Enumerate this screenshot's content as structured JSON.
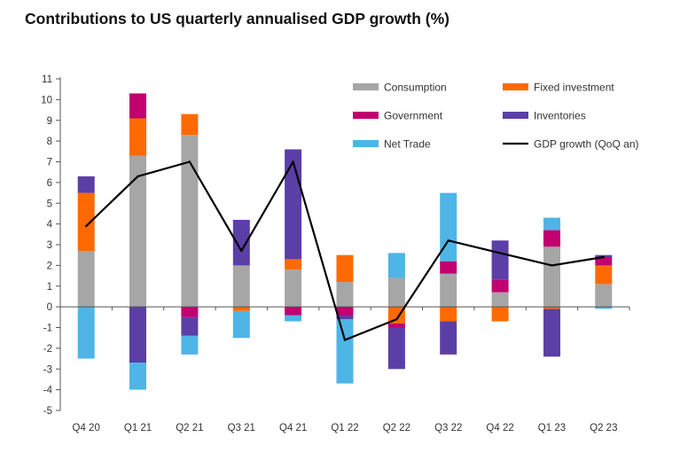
{
  "chart_data": {
    "type": "bar",
    "stacked": true,
    "title": "Contributions to US quarterly annualised GDP growth (%)",
    "xlabel": "",
    "ylabel": "",
    "ylim": [
      -5,
      11
    ],
    "yticks": [
      -5,
      -4,
      -3,
      -2,
      -1,
      0,
      1,
      2,
      3,
      4,
      5,
      6,
      7,
      8,
      9,
      10,
      11
    ],
    "categories": [
      "Q4 20",
      "Q1 21",
      "Q2 21",
      "Q3 21",
      "Q4 21",
      "Q1 22",
      "Q2 22",
      "Q3 22",
      "Q4 22",
      "Q1 23",
      "Q2 23"
    ],
    "series": [
      {
        "name": "Consumption",
        "color": "#a6a6a6",
        "values": [
          2.7,
          7.3,
          8.3,
          2.0,
          1.8,
          1.2,
          1.4,
          1.6,
          0.7,
          2.9,
          1.1
        ]
      },
      {
        "name": "Fixed investment",
        "color": "#ff6a00",
        "values": [
          2.8,
          1.8,
          1.0,
          -0.2,
          0.5,
          1.3,
          -0.8,
          -0.7,
          -0.7,
          -0.1,
          0.9
        ]
      },
      {
        "name": "Government",
        "color": "#c2006f",
        "values": [
          0.0,
          1.2,
          -0.5,
          0.0,
          -0.4,
          -0.4,
          -0.2,
          0.6,
          0.6,
          0.8,
          0.4
        ]
      },
      {
        "name": "Inventories",
        "color": "#5b3fa6",
        "values": [
          0.8,
          -2.7,
          -0.9,
          2.2,
          5.3,
          -0.2,
          -2.0,
          -1.6,
          1.9,
          -2.3,
          0.1
        ]
      },
      {
        "name": "Net Trade",
        "color": "#4eb5e6",
        "values": [
          -2.5,
          -1.3,
          -0.9,
          -1.3,
          -0.3,
          -3.1,
          1.2,
          3.3,
          0.0,
          0.6,
          -0.1
        ]
      }
    ],
    "line": {
      "name": "GDP growth (QoQ an)",
      "color": "#000000",
      "values": [
        3.9,
        6.3,
        7.0,
        2.7,
        7.0,
        -1.6,
        -0.6,
        3.2,
        2.6,
        2.0,
        2.4
      ]
    },
    "legend": {
      "position": "top-right",
      "order": [
        "Consumption",
        "Fixed investment",
        "Government",
        "Inventories",
        "Net Trade",
        "GDP growth (QoQ an)"
      ]
    }
  }
}
